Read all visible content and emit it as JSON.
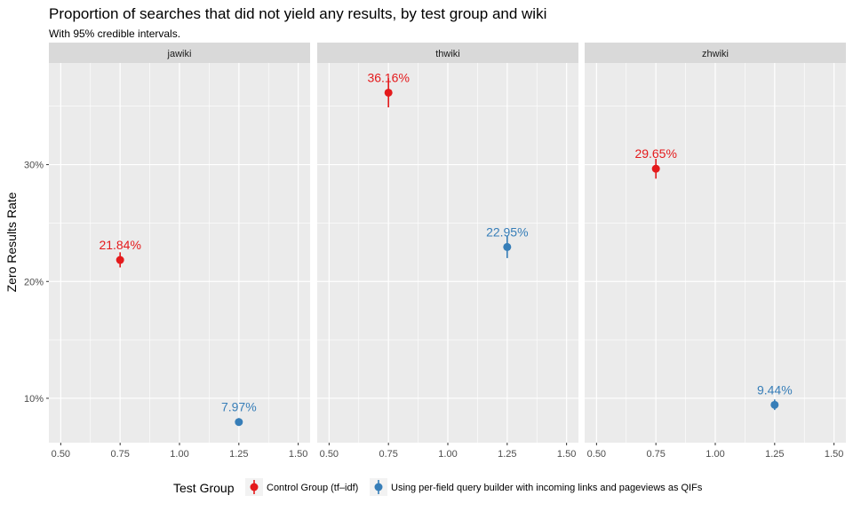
{
  "chart_data": {
    "type": "scatter",
    "title": "Proportion of searches that did not yield any results, by test group and wiki",
    "subtitle": "With 95% credible intervals.",
    "ylabel": "Zero Results Rate",
    "xlabel": "",
    "x_ticks": [
      "0.50",
      "0.75",
      "1.00",
      "1.25",
      "1.50"
    ],
    "x_tick_values": [
      0.5,
      0.75,
      1.0,
      1.25,
      1.5
    ],
    "xlim": [
      0.45,
      1.55
    ],
    "y_ticks": [
      "10%",
      "20%",
      "30%"
    ],
    "y_tick_values": [
      0.1,
      0.2,
      0.3
    ],
    "ylim": [
      0.062,
      0.387
    ],
    "grid": true,
    "legend_title": "Test Group",
    "legend_position": "bottom",
    "series": [
      {
        "name": "Control Group (tf–idf)",
        "color": "#e41a1c"
      },
      {
        "name": "Using per-field query builder with incoming links and pageviews as QIFs",
        "color": "#377eb8"
      }
    ],
    "panels": [
      {
        "label": "jawiki",
        "points": [
          {
            "series": 0,
            "x": 0.75,
            "y": 0.2184,
            "lower": 0.212,
            "upper": 0.225,
            "label": "21.84%"
          },
          {
            "series": 1,
            "x": 1.25,
            "y": 0.0797,
            "lower": 0.077,
            "upper": 0.083,
            "label": "7.97%"
          }
        ]
      },
      {
        "label": "thwiki",
        "points": [
          {
            "series": 0,
            "x": 0.75,
            "y": 0.3616,
            "lower": 0.349,
            "upper": 0.374,
            "label": "36.16%"
          },
          {
            "series": 1,
            "x": 1.25,
            "y": 0.2295,
            "lower": 0.22,
            "upper": 0.239,
            "label": "22.95%"
          }
        ]
      },
      {
        "label": "zhwiki",
        "points": [
          {
            "series": 0,
            "x": 0.75,
            "y": 0.2965,
            "lower": 0.288,
            "upper": 0.305,
            "label": "29.65%"
          },
          {
            "series": 1,
            "x": 1.25,
            "y": 0.0944,
            "lower": 0.09,
            "upper": 0.099,
            "label": "9.44%"
          }
        ]
      }
    ]
  }
}
